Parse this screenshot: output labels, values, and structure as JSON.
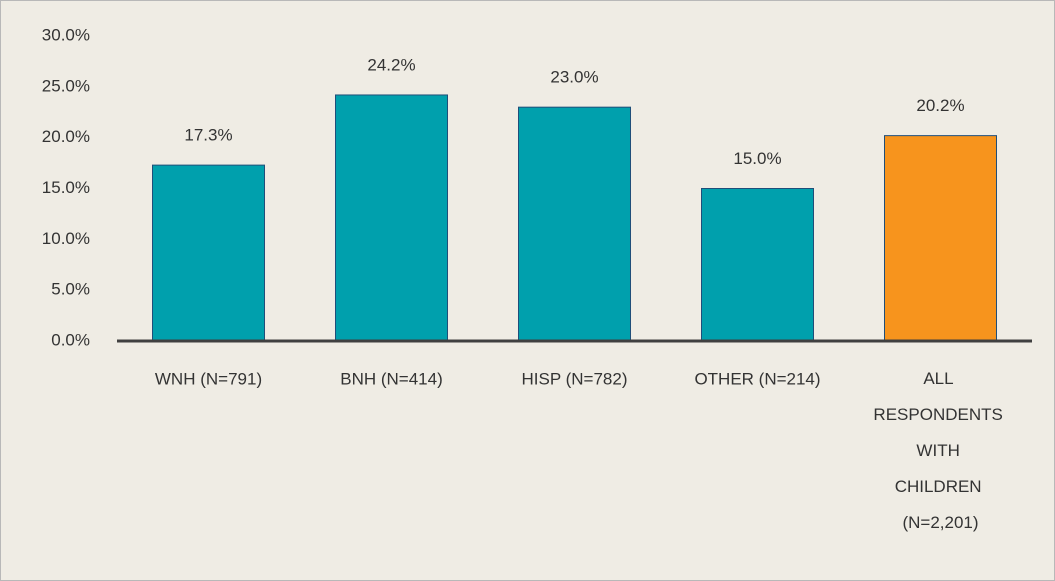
{
  "chart_data": {
    "type": "bar",
    "categories": [
      "WNH (N=791)",
      "BNH (N=414)",
      "HISP (N=782)",
      "OTHER (N=214)",
      "ALL RESPONDENTS WITH CHILDREN (N=2,201)"
    ],
    "values": [
      17.3,
      24.2,
      23.0,
      15.0,
      20.2
    ],
    "value_labels": [
      "17.3%",
      "24.2%",
      "23.0%",
      "15.0%",
      "20.2%"
    ],
    "colors": [
      "#00a0ad",
      "#00a0ad",
      "#00a0ad",
      "#00a0ad",
      "#f7941d"
    ],
    "ylim": [
      0,
      30
    ],
    "yticks": [
      {
        "value": 0,
        "label": "0.0%"
      },
      {
        "value": 5,
        "label": "5.0%"
      },
      {
        "value": 10,
        "label": "10.0%"
      },
      {
        "value": 15,
        "label": "15.0%"
      },
      {
        "value": 20,
        "label": "20.0%"
      },
      {
        "value": 25,
        "label": "25.0%"
      },
      {
        "value": 30,
        "label": "30.0%"
      }
    ],
    "grid": false
  }
}
